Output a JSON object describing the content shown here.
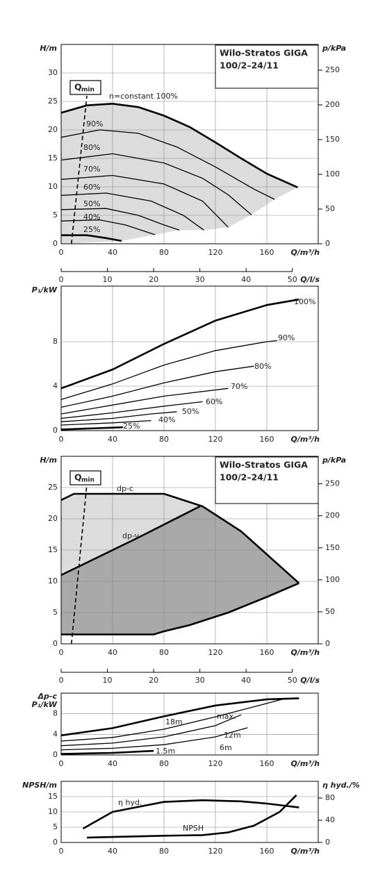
{
  "chart_data": [
    {
      "type": "line",
      "ylabel": "H/m",
      "y2label": "p/kPa",
      "xlabel": "Q/m³/h",
      "x2label": "Q/l/s",
      "xlim": [
        0,
        200
      ],
      "xticks": [
        0,
        40,
        80,
        120,
        160
      ],
      "x2lim": [
        0,
        55.6
      ],
      "x2ticks": [
        0,
        10,
        20,
        30,
        40,
        50
      ],
      "ylim": [
        0,
        35
      ],
      "yticks": [
        0,
        5,
        10,
        15,
        20,
        25,
        30
      ],
      "y2lim": [
        0,
        287
      ],
      "y2ticks": [
        0,
        50,
        100,
        150,
        200,
        250
      ],
      "grid": true,
      "title": [
        "Wilo-Stratos GIGA",
        "100/2–24/11"
      ],
      "qmin": {
        "text": "Q",
        "sub": "min",
        "x": [
          8,
          20
        ],
        "y": [
          0,
          26
        ]
      },
      "series": [
        {
          "name": "n=constant 100%",
          "color": "#000000",
          "x": [
            0,
            20,
            40,
            60,
            80,
            100,
            120,
            140,
            160,
            184
          ],
          "values": [
            23,
            24.3,
            24.6,
            24,
            22.5,
            20.5,
            17.8,
            15,
            12.3,
            9.9
          ]
        },
        {
          "name": "90%",
          "color": "#000000",
          "x": [
            0,
            30,
            60,
            90,
            120,
            150,
            166
          ],
          "values": [
            18.7,
            20,
            19.4,
            17,
            13.5,
            9.6,
            7.8
          ]
        },
        {
          "name": "80%",
          "color": "#000000",
          "x": [
            0,
            40,
            80,
            110,
            130,
            148
          ],
          "values": [
            14.7,
            15.8,
            14.2,
            11.5,
            8.6,
            5.1
          ]
        },
        {
          "name": "70%",
          "color": "#000000",
          "x": [
            0,
            40,
            80,
            110,
            130
          ],
          "values": [
            11.3,
            12,
            10.5,
            7.5,
            2.9
          ]
        },
        {
          "name": "60%",
          "color": "#000000",
          "x": [
            0,
            35,
            70,
            95,
            111
          ],
          "values": [
            8.5,
            8.9,
            7.5,
            5,
            2.4
          ]
        },
        {
          "name": "50%",
          "color": "#000000",
          "x": [
            0,
            35,
            60,
            80,
            92
          ],
          "values": [
            6,
            6.2,
            5,
            3.3,
            2.4
          ]
        },
        {
          "name": "40%",
          "color": "#000000",
          "x": [
            0,
            30,
            50,
            73
          ],
          "values": [
            4,
            4.2,
            3.3,
            1.6
          ]
        },
        {
          "name": "25%",
          "color": "#000000",
          "x": [
            0,
            20,
            35,
            47
          ],
          "values": [
            1.5,
            1.5,
            1.0,
            0.5
          ]
        }
      ]
    },
    {
      "type": "line",
      "ylabel": "P₁/kW",
      "xlabel": "Q/m³/h",
      "xlim": [
        0,
        200
      ],
      "xticks": [
        0,
        40,
        80,
        120,
        160
      ],
      "ylim": [
        0,
        13
      ],
      "yticks": [
        0,
        4,
        8
      ],
      "grid": true,
      "series": [
        {
          "name": "100%",
          "color": "#000000",
          "x": [
            0,
            40,
            80,
            120,
            160,
            185
          ],
          "values": [
            3.8,
            5.5,
            7.8,
            9.9,
            11.3,
            11.8
          ]
        },
        {
          "name": "90%",
          "color": "#000000",
          "x": [
            0,
            40,
            80,
            120,
            160,
            168
          ],
          "values": [
            2.8,
            4.2,
            5.9,
            7.2,
            8.0,
            8.1
          ]
        },
        {
          "name": "80%",
          "color": "#000000",
          "x": [
            0,
            40,
            80,
            120,
            150
          ],
          "values": [
            2.1,
            3.1,
            4.3,
            5.3,
            5.8
          ]
        },
        {
          "name": "70%",
          "color": "#000000",
          "x": [
            0,
            40,
            80,
            130
          ],
          "values": [
            1.5,
            2.3,
            3.1,
            3.8
          ]
        },
        {
          "name": "60%",
          "color": "#000000",
          "x": [
            0,
            40,
            80,
            110
          ],
          "values": [
            1.1,
            1.6,
            2.2,
            2.6
          ]
        },
        {
          "name": "50%",
          "color": "#000000",
          "x": [
            0,
            40,
            70,
            90
          ],
          "values": [
            0.8,
            1.1,
            1.5,
            1.7
          ]
        },
        {
          "name": "40%",
          "color": "#000000",
          "x": [
            0,
            40,
            70
          ],
          "values": [
            0.5,
            0.7,
            0.9
          ]
        },
        {
          "name": "25%",
          "color": "#000000",
          "x": [
            0,
            48
          ],
          "values": [
            0.1,
            0.3
          ]
        }
      ]
    },
    {
      "type": "line",
      "ylabel": "H/m",
      "y2label": "p/kPa",
      "xlabel": "Q/m³/h",
      "x2label": "Q/l/s",
      "xlim": [
        0,
        200
      ],
      "xticks": [
        0,
        40,
        80,
        120,
        160
      ],
      "x2lim": [
        0,
        55.6
      ],
      "x2ticks": [
        0,
        10,
        20,
        30,
        40,
        50
      ],
      "ylim": [
        0,
        30
      ],
      "yticks": [
        0,
        5,
        10,
        15,
        20,
        25
      ],
      "y2lim": [
        0,
        293
      ],
      "y2ticks": [
        0,
        50,
        100,
        150,
        200,
        250
      ],
      "grid": true,
      "title": [
        "Wilo-Stratos GIGA",
        "100/2–24/11"
      ],
      "qmin": {
        "text": "Q",
        "sub": "min",
        "x": [
          8,
          20
        ],
        "y": [
          0,
          25.5
        ]
      },
      "series": [
        {
          "name": "dp-c",
          "color": "#000000",
          "x": [
            0,
            10,
            80,
            110,
            140,
            185
          ],
          "values": [
            23,
            24,
            24,
            22,
            18,
            9.7
          ]
        },
        {
          "name": "dp-v",
          "color": "#000000",
          "x": [
            0,
            60,
            108
          ],
          "values": [
            11,
            17,
            22
          ]
        },
        {
          "color": "#000000",
          "x": [
            0,
            72,
            80,
            100,
            130,
            160,
            185
          ],
          "values": [
            1.5,
            1.5,
            2,
            3,
            5,
            7.5,
            9.7
          ]
        }
      ]
    },
    {
      "type": "line",
      "ylabel": [
        "Δp-c",
        "P₁/kW"
      ],
      "xlabel": "Q/m³/h",
      "xlim": [
        0,
        200
      ],
      "xticks": [
        0,
        40,
        80,
        120,
        160
      ],
      "ylim": [
        0,
        12
      ],
      "yticks": [
        0,
        4,
        8
      ],
      "grid": true,
      "series": [
        {
          "name": "max.",
          "color": "#000000",
          "x": [
            0,
            40,
            80,
            120,
            160,
            185
          ],
          "values": [
            3.8,
            5.2,
            7.5,
            9.6,
            10.8,
            11
          ]
        },
        {
          "name": "18m",
          "color": "#000000",
          "x": [
            0,
            40,
            80,
            120,
            160,
            175
          ],
          "values": [
            2.7,
            3.4,
            5,
            7.4,
            10,
            11
          ]
        },
        {
          "name": "12m",
          "color": "#000000",
          "x": [
            0,
            40,
            80,
            120,
            140
          ],
          "values": [
            1.8,
            2.3,
            3.5,
            5.7,
            7.8
          ]
        },
        {
          "name": "6m",
          "color": "#000000",
          "x": [
            0,
            40,
            80,
            120,
            145
          ],
          "values": [
            1,
            1.3,
            2,
            3.5,
            5.3
          ]
        },
        {
          "name": "1.5m",
          "color": "#000000",
          "x": [
            0,
            40,
            72
          ],
          "values": [
            0.2,
            0.4,
            0.8
          ]
        }
      ]
    },
    {
      "type": "line",
      "ylabel": "NPSH/m",
      "y2label": "η hyd./%",
      "xlabel": "Q/m³/h",
      "xlim": [
        0,
        200
      ],
      "xticks": [
        0,
        40,
        80,
        120,
        160
      ],
      "ylim": [
        0,
        20
      ],
      "yticks": [
        0,
        5,
        10,
        15
      ],
      "y2lim": [
        0,
        110
      ],
      "y2ticks": [
        0,
        40,
        80
      ],
      "grid": true,
      "series": [
        {
          "name": "η hyd.",
          "color": "#000000",
          "axis": "y2",
          "x": [
            17,
            40,
            80,
            110,
            140,
            160,
            185
          ],
          "values": [
            25,
            55,
            73,
            76,
            74,
            70,
            63
          ]
        },
        {
          "name": "NPSH",
          "color": "#000000",
          "x": [
            20,
            40,
            80,
            110,
            130,
            150,
            170,
            183
          ],
          "values": [
            1.6,
            1.8,
            2.2,
            2.4,
            3.3,
            5.5,
            10,
            15.5
          ]
        }
      ]
    }
  ]
}
